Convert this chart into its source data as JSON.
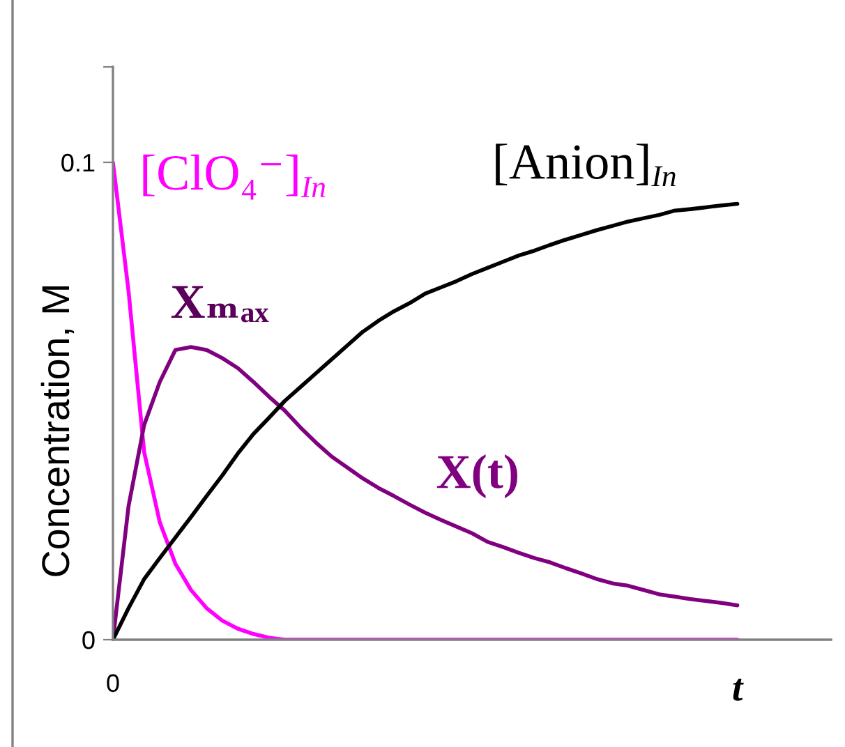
{
  "chart_data": {
    "type": "line",
    "ylabel": "Concentration, M",
    "categories": [
      "0",
      null,
      null,
      null,
      null,
      null,
      null,
      null,
      null,
      null,
      null,
      null,
      null,
      null,
      null,
      null,
      null,
      null,
      null,
      null,
      null,
      null,
      null,
      null,
      null,
      null,
      null,
      null,
      null,
      null,
      null,
      null,
      null,
      null,
      null,
      null,
      null,
      null,
      null,
      null,
      "t",
      null,
      null,
      null,
      null,
      null,
      null
    ],
    "ylim": [
      0,
      0.12
    ],
    "yticks": [
      0,
      0.1,
      {
        "value": 0.12,
        "label": null
      }
    ],
    "line_style": "solid",
    "series": [
      {
        "name": "[ClO₄⁻]$_{In}$",
        "color": "#ff00ff",
        "values": [
          0.1,
          0.073,
          0.0393,
          0.0246,
          0.0159,
          0.0104,
          0.0066,
          0.004,
          0.0023,
          0.0012,
          0.0004,
          0,
          0,
          0,
          0,
          0,
          0,
          0,
          0,
          0,
          0,
          0,
          0,
          0,
          0,
          0,
          0,
          0,
          0,
          0,
          0,
          0,
          0,
          0,
          0,
          0,
          0,
          0,
          0,
          0,
          0,
          null,
          null,
          null,
          null,
          null,
          null
        ]
      },
      {
        "name": "X(t)",
        "color": "#800080",
        "values": [
          0,
          0.028,
          0.045,
          0.054,
          0.0607,
          0.0613,
          0.0607,
          0.059,
          0.0569,
          0.054,
          0.0509,
          0.048,
          0.0445,
          0.0413,
          0.0384,
          0.0361,
          0.0338,
          0.0318,
          0.0301,
          0.0283,
          0.0266,
          0.0251,
          0.0237,
          0.0223,
          0.0205,
          0.0194,
          0.0182,
          0.0171,
          0.0162,
          0.015,
          0.0139,
          0.0127,
          0.0118,
          0.0113,
          0.0104,
          0.0095,
          0.009,
          0.0085,
          0.0081,
          0.0077,
          0.0072,
          null,
          null,
          null,
          null,
          null,
          null
        ]
      },
      {
        "name": "[Anion]$_{In}$",
        "color": "#000000",
        "values": [
          0,
          0.0066,
          0.0127,
          0.0171,
          0.0214,
          0.0257,
          0.0301,
          0.0344,
          0.039,
          0.0431,
          0.0465,
          0.05,
          0.0529,
          0.0558,
          0.0587,
          0.0616,
          0.0645,
          0.0668,
          0.0688,
          0.0705,
          0.0725,
          0.0738,
          0.0751,
          0.0766,
          0.0779,
          0.0792,
          0.0805,
          0.0815,
          0.0827,
          0.0838,
          0.0848,
          0.0858,
          0.0867,
          0.0876,
          0.0883,
          0.089,
          0.0899,
          0.0902,
          0.0906,
          0.091,
          0.0913,
          null,
          null,
          null,
          null,
          null,
          null
        ]
      }
    ],
    "annotations": [
      "Xₘₐₓ"
    ]
  }
}
